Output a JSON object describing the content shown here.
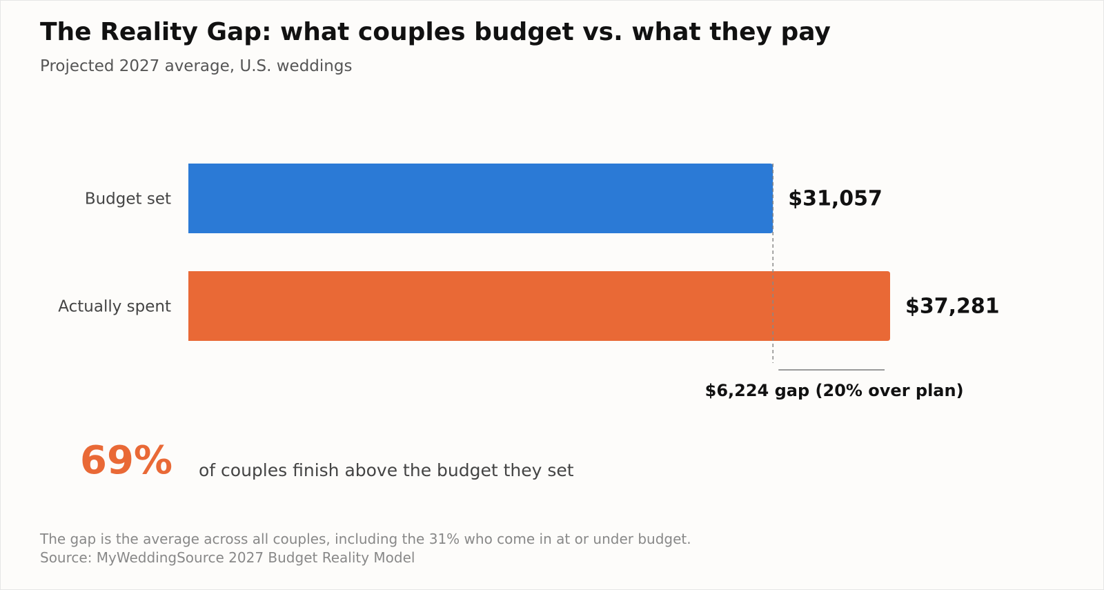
{
  "title": "The Reality Gap: what couples budget vs. what they pay",
  "subtitle": "Projected 2027 average, U.S. weddings",
  "chart_data": {
    "type": "bar",
    "orientation": "horizontal",
    "categories": [
      "Budget set",
      "Actually spent"
    ],
    "values": [
      31057,
      37281
    ],
    "value_labels": [
      "$31,057",
      "$37,281"
    ],
    "colors": [
      "#2b7ad6",
      "#e96936"
    ],
    "xlim": [
      0,
      37281
    ],
    "grid": false,
    "annotation": {
      "text": "$6,224 gap (20% over plan)",
      "from": 31057,
      "to": 37281
    }
  },
  "stat": {
    "value": "69%",
    "text": "of couples finish above the budget they set",
    "color": "#e96936"
  },
  "footer": {
    "note": "The gap is the average across all couples, including the 31% who come in at or under budget.",
    "source": "Source: MyWeddingSource 2027 Budget Reality Model"
  }
}
